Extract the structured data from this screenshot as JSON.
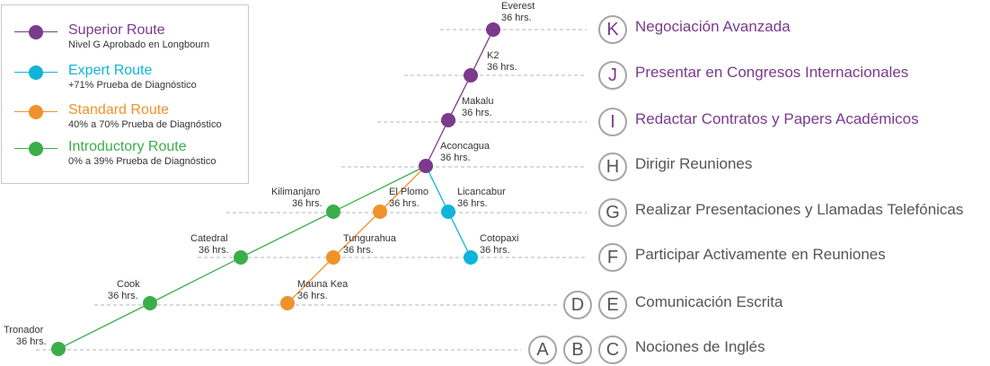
{
  "legend": {
    "items": [
      {
        "name": "Superior Route",
        "subtitle": "Nivel G Aprobado en Longbourn",
        "color": "#7b3a8c"
      },
      {
        "name": "Expert Route",
        "subtitle": "+71% Prueba de Diagnóstico",
        "color": "#0fb5d9"
      },
      {
        "name": "Standard Route",
        "subtitle": "40% a 70% Prueba de Diagnóstico",
        "color": "#f0922b"
      },
      {
        "name": "Introductory Route",
        "subtitle": "0% a 39% Prueba de Diagnóstico",
        "color": "#3aae4a"
      }
    ]
  },
  "levels": [
    {
      "letters": [
        "K"
      ],
      "label": "Negociación Avanzada",
      "style": "purple"
    },
    {
      "letters": [
        "J"
      ],
      "label": "Presentar en Congresos Internacionales",
      "style": "purple"
    },
    {
      "letters": [
        "I"
      ],
      "label": "Redactar Contratos y Papers Académicos",
      "style": "purple"
    },
    {
      "letters": [
        "H"
      ],
      "label": "Dirigir Reuniones",
      "style": "gray"
    },
    {
      "letters": [
        "G"
      ],
      "label": "Realizar Presentaciones y Llamadas Telefónicas",
      "style": "gray"
    },
    {
      "letters": [
        "F"
      ],
      "label": "Participar Activamente en Reuniones",
      "style": "gray"
    },
    {
      "letters": [
        "D",
        "E"
      ],
      "label": "Comunicación Escrita",
      "style": "gray"
    },
    {
      "letters": [
        "A",
        "B",
        "C"
      ],
      "label": "Nociones de Inglés",
      "style": "gray"
    }
  ],
  "peaks": [
    {
      "name": "Everest",
      "hours": "36 hrs.",
      "route": "superior"
    },
    {
      "name": "K2",
      "hours": "36 hrs.",
      "route": "superior"
    },
    {
      "name": "Makalu",
      "hours": "36 hrs.",
      "route": "superior"
    },
    {
      "name": "Aconcagua",
      "hours": "36 hrs.",
      "route": "superior"
    },
    {
      "name": "Licancabur",
      "hours": "36 hrs.",
      "route": "expert"
    },
    {
      "name": "Cotopaxi",
      "hours": "36 hrs.",
      "route": "expert"
    },
    {
      "name": "El Plomo",
      "hours": "36 hrs.",
      "route": "standard"
    },
    {
      "name": "Tungurahua",
      "hours": "36 hrs.",
      "route": "standard"
    },
    {
      "name": "Mauna Kea",
      "hours": "36 hrs.",
      "route": "standard"
    },
    {
      "name": "Kilimanjaro",
      "hours": "36 hrs.",
      "route": "introductory"
    },
    {
      "name": "Catedral",
      "hours": "36 hrs.",
      "route": "introductory"
    },
    {
      "name": "Cook",
      "hours": "36 hrs.",
      "route": "introductory"
    },
    {
      "name": "Tronador",
      "hours": "36 hrs.",
      "route": "introductory"
    }
  ]
}
